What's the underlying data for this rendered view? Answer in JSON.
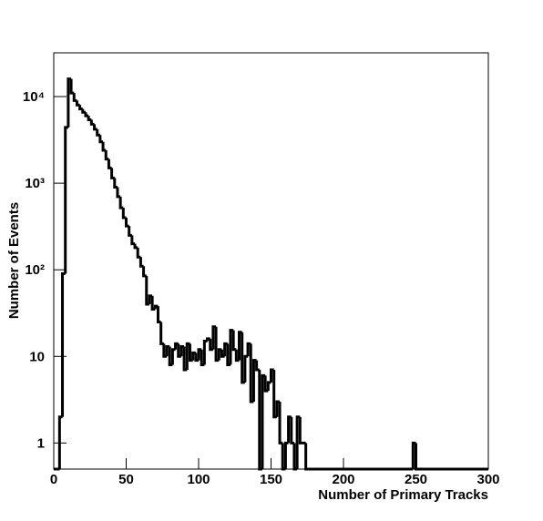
{
  "chart_data": {
    "type": "histogram",
    "x_label": "Number of Primary Tracks",
    "y_label": "Number of Events",
    "log_y": true,
    "color": "#000000",
    "bins": [
      0,
      2,
      4,
      6,
      8,
      10,
      12,
      14,
      16,
      18,
      20,
      22,
      24,
      26,
      28,
      30,
      32,
      34,
      36,
      38,
      40,
      42,
      44,
      46,
      48,
      50,
      52,
      54,
      56,
      58,
      60,
      62,
      64,
      66,
      68,
      70,
      72,
      74,
      76,
      78,
      80,
      82,
      84,
      86,
      88,
      90,
      92,
      94,
      96,
      98,
      100,
      102,
      104,
      106,
      108,
      110,
      112,
      114,
      116,
      118,
      120,
      122,
      124,
      126,
      128,
      130,
      132,
      134,
      136,
      138,
      140,
      142,
      144,
      146,
      148,
      150,
      152,
      154,
      156,
      158,
      160,
      162,
      164,
      166,
      168,
      170,
      172,
      174,
      176,
      248,
      250,
      300
    ],
    "values": [
      0,
      0,
      2,
      90,
      4400,
      16000,
      11000,
      9000,
      8000,
      7200,
      6600,
      6000,
      5400,
      4800,
      4200,
      3600,
      3000,
      2400,
      1900,
      1500,
      1150,
      900,
      700,
      520,
      400,
      320,
      250,
      200,
      180,
      140,
      110,
      85,
      40,
      50,
      35,
      38,
      25,
      14,
      10,
      13,
      8,
      12,
      14,
      10,
      13,
      7,
      14,
      9,
      11,
      9,
      12,
      8,
      15,
      16,
      12,
      22,
      9,
      12,
      10,
      14,
      8,
      20,
      12,
      9,
      19,
      5,
      10,
      14,
      3,
      9,
      7,
      0,
      6,
      4,
      5,
      7,
      2,
      3,
      1,
      0,
      1,
      2,
      1,
      0,
      2,
      1,
      1,
      0,
      0,
      1,
      0
    ],
    "xlim": [
      0,
      300
    ],
    "xticks": [
      0,
      50,
      100,
      150,
      200,
      250,
      300
    ],
    "ylim": [
      0.5,
      32000
    ],
    "yticks": [
      1,
      10,
      {
        "value": 100,
        "label": "10²"
      },
      {
        "value": 1000,
        "label": "10³"
      },
      {
        "value": 10000,
        "label": "10⁴"
      }
    ]
  }
}
